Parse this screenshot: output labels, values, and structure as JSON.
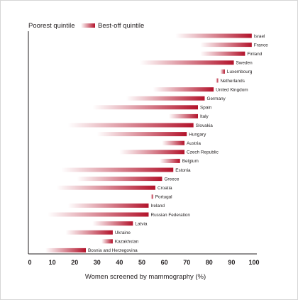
{
  "legend": {
    "poorest_label": "Poorest quintile",
    "best_label": "Best-off quintile"
  },
  "colors": {
    "bar_dark": "#b3132b",
    "bar_light": "#ffffff",
    "axis": "#231f20",
    "border": "#d6d6d6"
  },
  "chart_data": {
    "type": "bar",
    "orientation": "horizontal-range",
    "xlabel": "Women screened by mammography (%)",
    "xlim": [
      0,
      100
    ],
    "xticks": [
      0,
      10,
      20,
      30,
      40,
      50,
      60,
      70,
      80,
      90,
      100
    ],
    "series": [
      {
        "name": "Poorest quintile",
        "encoding": "bar start (light end)"
      },
      {
        "name": "Best-off quintile",
        "encoding": "bar end (dark end)"
      }
    ],
    "categories": [
      "Israel",
      "France",
      "Finland",
      "Sweden",
      "Luxembourg",
      "Netherlands",
      "United Kingdom",
      "Germany",
      "Spain",
      "Italy",
      "Slovakia",
      "Hungary",
      "Austria",
      "Czech Republic",
      "Belgium",
      "Estonia",
      "Greece",
      "Croatia",
      "Portugal",
      "Ireland",
      "Russian Federation",
      "Latvia",
      "Ukraine",
      "Kazakhstan",
      "Bosnia and Herzegovina"
    ],
    "poorest": [
      65,
      76,
      76,
      49,
      85,
      83,
      55,
      43,
      28,
      62,
      17,
      30,
      59,
      40,
      58,
      14,
      21,
      12,
      54,
      17,
      8,
      28,
      16,
      32,
      7
    ],
    "best_off": [
      99,
      99,
      96,
      91,
      87,
      84,
      82,
      78,
      75,
      75,
      73,
      70,
      69,
      69,
      67,
      64,
      59,
      56,
      55,
      53,
      53,
      46,
      37,
      37,
      25
    ]
  }
}
